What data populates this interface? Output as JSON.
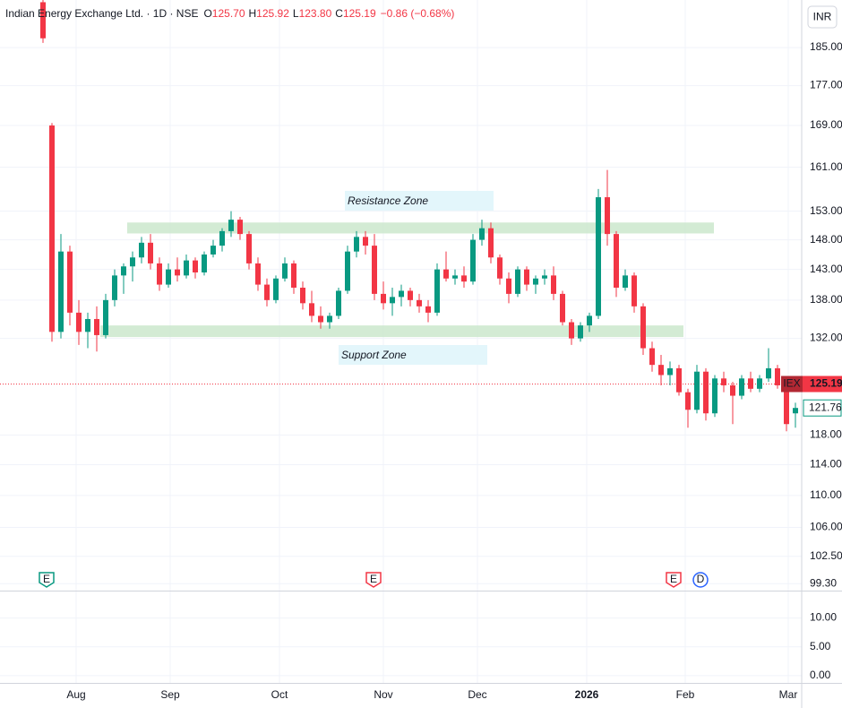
{
  "chart_data": {
    "type": "candlestick",
    "legend": {
      "symbol": "Indian Energy Exchange Ltd. · 1D · NSE",
      "ohlc": [
        {
          "key": "O",
          "value": "125.70"
        },
        {
          "key": "H",
          "value": "125.92"
        },
        {
          "key": "L",
          "value": "123.80"
        },
        {
          "key": "C",
          "value": "125.19"
        }
      ],
      "change": "−0.86 (−0.68%)"
    },
    "currency": "INR",
    "up_color": "#089981",
    "down_color": "#f23645",
    "log_scale": true,
    "grid": true,
    "ylim": [
      98.5,
      195.5
    ],
    "yticks": [
      {
        "value": 185,
        "label": "185.00"
      },
      {
        "value": 177,
        "label": "177.00"
      },
      {
        "value": 169,
        "label": "169.00"
      },
      {
        "value": 161,
        "label": "161.00"
      },
      {
        "value": 153,
        "label": "153.00"
      },
      {
        "value": 148,
        "label": "148.00"
      },
      {
        "value": 143,
        "label": "143.00"
      },
      {
        "value": 138,
        "label": "138.00"
      },
      {
        "value": 132,
        "label": "132.00"
      },
      {
        "value": 118,
        "label": "118.00"
      },
      {
        "value": 114,
        "label": "114.00"
      },
      {
        "value": 110,
        "label": "110.00"
      },
      {
        "value": 106,
        "label": "106.00"
      },
      {
        "value": 102.5,
        "label": "102.50"
      },
      {
        "value": 99.3,
        "label": "99.30"
      }
    ],
    "xlim": [
      -4.8,
      84.7
    ],
    "xticks": [
      {
        "value": 3.7,
        "label": "Aug"
      },
      {
        "value": 14.2,
        "label": "Sep"
      },
      {
        "value": 26.4,
        "label": "Oct"
      },
      {
        "value": 38,
        "label": "Nov"
      },
      {
        "value": 48.5,
        "label": "Dec"
      },
      {
        "value": 60.7,
        "label": "2026"
      },
      {
        "value": 71.7,
        "label": "Feb"
      },
      {
        "value": 83.2,
        "label": "Mar"
      }
    ],
    "open": [
      195,
      169,
      133,
      146,
      136,
      133,
      135,
      132.5,
      138,
      142,
      143.5,
      145,
      147.5,
      144,
      140.5,
      143,
      142,
      144.5,
      142.5,
      145.5,
      147,
      149.5,
      151.5,
      149,
      144,
      140.5,
      138,
      141.5,
      144,
      140,
      137.5,
      135.5,
      134.5,
      135.5,
      139.5,
      146,
      148.5,
      147,
      139,
      137.5,
      138.5,
      139.5,
      138,
      137,
      136,
      143,
      141.5,
      142,
      141,
      148,
      150,
      145,
      141.5,
      139,
      143,
      140.5,
      141.5,
      142,
      139,
      134.5,
      132,
      134,
      135.5,
      155.5,
      149,
      140,
      142,
      137,
      130.5,
      128,
      126.5,
      127.5,
      124,
      121.5,
      127,
      121,
      126,
      125,
      123.5,
      126,
      124.5,
      126,
      127.5,
      125,
      121
    ],
    "high": [
      199,
      169.5,
      149,
      147,
      138,
      136,
      137,
      139,
      143,
      144,
      146,
      148.5,
      149,
      145,
      144,
      145,
      145.5,
      145,
      146,
      148,
      150,
      153,
      152,
      149.5,
      145,
      141.5,
      142,
      145,
      144.5,
      141,
      139.5,
      137,
      136,
      140,
      147,
      149.5,
      149.5,
      149,
      141,
      140,
      140.5,
      140,
      139,
      138,
      144,
      146,
      143,
      143.5,
      149,
      151.5,
      151,
      145.5,
      142.5,
      143.5,
      143.5,
      142,
      143,
      143.5,
      139.5,
      135,
      134.5,
      136,
      157,
      160.5,
      149.5,
      143,
      142.5,
      137.5,
      131.5,
      129.5,
      128.5,
      128,
      124.5,
      128,
      127.5,
      126.5,
      127,
      125.5,
      126.5,
      127,
      126.5,
      130.5,
      128,
      125.5,
      122.5
    ],
    "low": [
      186,
      131.5,
      132,
      134,
      131,
      130.5,
      130,
      132,
      137,
      139,
      141,
      144,
      143,
      139.5,
      140,
      141,
      141.5,
      141.5,
      142,
      145,
      146,
      148.5,
      148,
      143,
      139.5,
      137,
      137.5,
      141,
      139,
      136.5,
      134.5,
      133.5,
      133.5,
      135,
      139,
      145,
      145.5,
      138,
      136.5,
      135.5,
      137,
      137,
      136,
      134.5,
      135.5,
      141,
      140.5,
      140,
      140.5,
      147,
      144,
      140.5,
      137.5,
      138.5,
      139.5,
      139,
      140.5,
      138,
      134,
      131,
      131.5,
      133,
      135,
      147,
      138.5,
      139.5,
      136,
      129.5,
      127,
      125,
      125,
      123.5,
      119,
      121,
      120,
      120.5,
      124,
      119.5,
      123,
      124,
      124,
      125.5,
      124.5,
      118.5,
      119
    ],
    "close": [
      187,
      133,
      146,
      136,
      133,
      135,
      132.5,
      138,
      142,
      143.5,
      145,
      147.5,
      144,
      140.5,
      143,
      142,
      144.5,
      142.5,
      145.5,
      147,
      149.5,
      151.5,
      149,
      144,
      140.5,
      138,
      141.5,
      144,
      140,
      137.5,
      135.5,
      134.5,
      135.5,
      139.5,
      146,
      148.5,
      147,
      139,
      137.5,
      138.5,
      139.5,
      138,
      137,
      136,
      143,
      141.5,
      142,
      141,
      148,
      150,
      145,
      141.5,
      139,
      143,
      140.5,
      141.5,
      142,
      139,
      134.5,
      132,
      134,
      135.5,
      155.5,
      149,
      140,
      142,
      137,
      130.5,
      128,
      126.5,
      127.5,
      124,
      121.5,
      127,
      121,
      126,
      125,
      123.5,
      126,
      124.5,
      126,
      127.5,
      125,
      119.5,
      121.76
    ],
    "zones": [
      {
        "label": "Resistance Zone",
        "from": 149.1,
        "to": 151,
        "x": [
          9.4,
          74.9
        ]
      },
      {
        "label": "Support Zone",
        "from": 132.2,
        "to": 134,
        "x": [
          6.4,
          71.5
        ]
      }
    ],
    "events": [
      {
        "label": "E",
        "x": 0.4,
        "color": "#089981"
      },
      {
        "label": "E",
        "x": 36.9,
        "color": "#f23645"
      },
      {
        "label": "E",
        "x": 70.4,
        "color": "#f23645"
      },
      {
        "label": "D",
        "x": 73.4,
        "color": "#2962ff"
      }
    ],
    "last_price": {
      "symbol": "IEX",
      "value": 125.19
    },
    "ref_price": 121.76,
    "lower_pane": {
      "ylim": [
        -1.27,
        14.6
      ],
      "yticks": [
        {
          "value": 10,
          "label": "10.00"
        },
        {
          "value": 5,
          "label": "5.00"
        },
        {
          "value": 0,
          "label": "0.00"
        }
      ]
    }
  }
}
